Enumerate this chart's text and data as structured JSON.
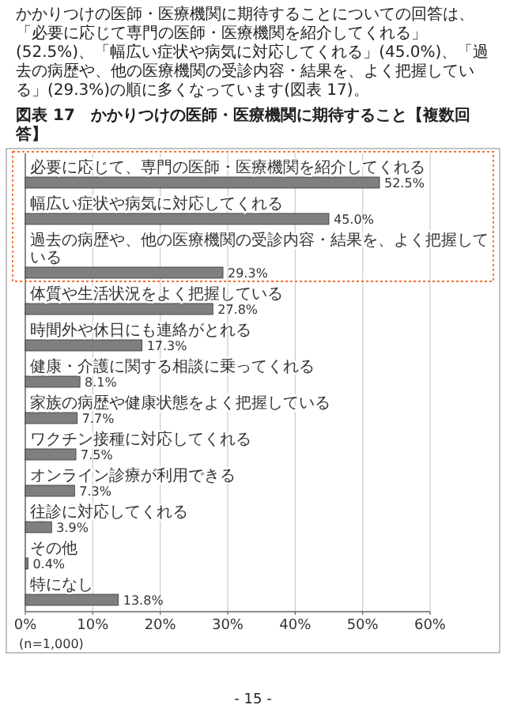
{
  "chart_data": {
    "type": "bar",
    "orientation": "horizontal",
    "subtitle": "かかりつけの医師・医療機関に期待することについての回答は、「必要に応じて専門の医師・医療機関を紹介してくれる」(52.5%)、「幅広い症状や病気に対応してくれる」(45.0%)、「過去の病歴や、他の医療機関の受診内容・結果を、よく把握している」(29.3%)の順に多くなっています(図表 17)。",
    "title": "図表 17　かかりつけの医師・医療機関に期待すること【複数回答】",
    "categories": [
      "必要に応じて、専門の医師・医療機関を紹介してくれる",
      "幅広い症状や病気に対応してくれる",
      "過去の病歴や、他の医療機関の受診内容・結果を、よく把握している",
      "体質や生活状況をよく把握している",
      "時間外や休日にも連絡がとれる",
      "健康・介護に関する相談に乗ってくれる",
      "家族の病歴や健康状態をよく把握している",
      "ワクチン接種に対応してくれる",
      "オンライン診療が利用できる",
      "往診に対応してくれる",
      "その他",
      "特になし"
    ],
    "values": [
      52.5,
      45.0,
      29.3,
      27.8,
      17.3,
      8.1,
      7.7,
      7.5,
      7.3,
      3.9,
      0.4,
      13.8
    ],
    "value_labels": [
      "52.5%",
      "45.0%",
      "29.3%",
      "27.8%",
      "17.3%",
      "8.1%",
      "7.7%",
      "7.5%",
      "7.3%",
      "3.9%",
      "0.4%",
      "13.8%"
    ],
    "color": "#7f7f7f",
    "xlim": [
      0,
      60
    ],
    "xticks": [
      {
        "value": 0,
        "label": "0%"
      },
      {
        "value": 10,
        "label": "10%"
      },
      {
        "value": 20,
        "label": "20%"
      },
      {
        "value": 30,
        "label": "30%"
      },
      {
        "value": 40,
        "label": "40%"
      },
      {
        "value": 50,
        "label": "50%"
      },
      {
        "value": 60,
        "label": "60%"
      }
    ],
    "grid": "x",
    "annotations": [
      "(n=1,000)",
      "- 15 -"
    ]
  }
}
